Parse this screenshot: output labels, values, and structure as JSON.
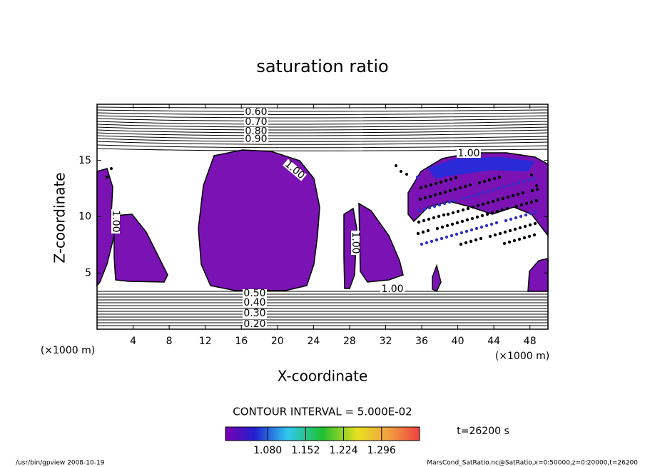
{
  "chart_data": {
    "type": "contour",
    "title": "saturation ratio",
    "x_label": "X-coordinate",
    "y_label": "Z-coordinate",
    "x_unit": "(×1000 m)",
    "xlim": [
      0,
      50
    ],
    "xticks": [
      4,
      8,
      12,
      16,
      20,
      24,
      28,
      32,
      36,
      40,
      44,
      48
    ],
    "ylim": [
      0,
      20
    ],
    "yticks": [
      5,
      10,
      15
    ],
    "contour_labels": [
      {
        "value": 0.6,
        "label": "0.60"
      },
      {
        "value": 0.7,
        "label": "0.70"
      },
      {
        "value": 0.8,
        "label": "0.80"
      },
      {
        "value": 0.9,
        "label": "0.90"
      },
      {
        "value": 1.0,
        "label": "1.00"
      },
      {
        "value": 1.0,
        "label": "1.00"
      },
      {
        "value": 1.0,
        "label": "1.00"
      },
      {
        "value": 1.0,
        "label": "1.00"
      },
      {
        "value": 1.0,
        "label": "1.00"
      },
      {
        "value": 0.5,
        "label": "0.50"
      },
      {
        "value": 0.4,
        "label": "0.40"
      },
      {
        "value": 0.3,
        "label": "0.30"
      },
      {
        "value": 0.2,
        "label": "0.20"
      }
    ],
    "contour_interval": "CONTOUR INTERVAL = 5.000E-02",
    "colorbar": {
      "clim": [
        1.0,
        1.368
      ],
      "ticks": [
        {
          "value": 1.08,
          "label": "1.080"
        },
        {
          "value": 1.152,
          "label": "1.152"
        },
        {
          "value": 1.224,
          "label": "1.224"
        },
        {
          "value": 1.296,
          "label": "1.296"
        }
      ]
    },
    "time_label": "t=26200 s",
    "footer_left": "/usr/bin/gpview   2008-10-19",
    "footer_right": "MarsCond_SatRatio.nc@SatRatio,x=0:50000,z=0:20000,t=26200"
  }
}
